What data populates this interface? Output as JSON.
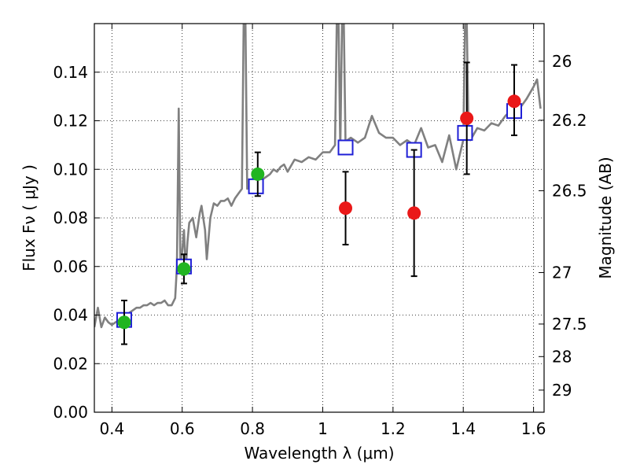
{
  "chart_data": {
    "type": "scatter",
    "title": "",
    "xlabel": "Wavelength  λ (μm)",
    "ylabel": "Flux  Fν  ( μJy )",
    "y2label": "Magnitude (AB)",
    "xlim": [
      0.35,
      1.63
    ],
    "ylim": [
      0.0,
      0.16
    ],
    "x_ticks": [
      0.4,
      0.6,
      0.8,
      1.0,
      1.2,
      1.4,
      1.6
    ],
    "x_tick_labels": [
      "0.4",
      "0.6",
      "0.8",
      "1",
      "1.2",
      "1.4",
      "1.6"
    ],
    "y_ticks": [
      0.0,
      0.02,
      0.04,
      0.06,
      0.08,
      0.1,
      0.12,
      0.14
    ],
    "y_tick_labels": [
      "0.00",
      "0.02",
      "0.04",
      "0.06",
      "0.08",
      "0.10",
      "0.12",
      "0.14"
    ],
    "y2_ticks": [
      {
        "label": "26",
        "flux": 0.1445
      },
      {
        "label": "26.2",
        "flux": 0.1202
      },
      {
        "label": "26.5",
        "flux": 0.0912
      },
      {
        "label": "27",
        "flux": 0.0575
      },
      {
        "label": "27.5",
        "flux": 0.0363
      },
      {
        "label": "28",
        "flux": 0.0229
      },
      {
        "label": "29",
        "flux": 0.0091
      }
    ],
    "grid": true,
    "series": [
      {
        "kind": "line",
        "color": "#808080",
        "x": [
          0.35,
          0.36,
          0.37,
          0.38,
          0.39,
          0.4,
          0.41,
          0.42,
          0.43,
          0.44,
          0.45,
          0.46,
          0.47,
          0.48,
          0.49,
          0.5,
          0.51,
          0.52,
          0.53,
          0.54,
          0.55,
          0.56,
          0.57,
          0.58,
          0.585,
          0.59,
          0.595,
          0.6,
          0.605,
          0.61,
          0.615,
          0.62,
          0.63,
          0.64,
          0.65,
          0.655,
          0.66,
          0.665,
          0.67,
          0.68,
          0.69,
          0.7,
          0.71,
          0.72,
          0.73,
          0.74,
          0.75,
          0.76,
          0.77,
          0.775,
          0.78,
          0.785,
          0.79,
          0.8,
          0.81,
          0.82,
          0.83,
          0.84,
          0.85,
          0.86,
          0.87,
          0.88,
          0.89,
          0.9,
          0.92,
          0.94,
          0.96,
          0.98,
          1.0,
          1.02,
          1.035,
          1.04,
          1.045,
          1.05,
          1.055,
          1.06,
          1.065,
          1.07,
          1.08,
          1.1,
          1.12,
          1.14,
          1.16,
          1.18,
          1.2,
          1.22,
          1.24,
          1.26,
          1.28,
          1.3,
          1.32,
          1.34,
          1.36,
          1.38,
          1.4,
          1.405,
          1.41,
          1.415,
          1.42,
          1.44,
          1.46,
          1.48,
          1.5,
          1.52,
          1.54,
          1.56,
          1.58,
          1.6,
          1.61,
          1.62
        ],
        "values": [
          0.035,
          0.043,
          0.035,
          0.039,
          0.037,
          0.036,
          0.037,
          0.038,
          0.039,
          0.04,
          0.041,
          0.042,
          0.043,
          0.043,
          0.044,
          0.044,
          0.045,
          0.044,
          0.045,
          0.045,
          0.046,
          0.044,
          0.044,
          0.047,
          0.06,
          0.125,
          0.06,
          0.066,
          0.075,
          0.058,
          0.07,
          0.078,
          0.08,
          0.072,
          0.082,
          0.085,
          0.08,
          0.075,
          0.063,
          0.08,
          0.086,
          0.085,
          0.087,
          0.087,
          0.088,
          0.085,
          0.088,
          0.09,
          0.092,
          0.16,
          0.16,
          0.092,
          0.093,
          0.095,
          0.094,
          0.095,
          0.096,
          0.097,
          0.098,
          0.1,
          0.099,
          0.101,
          0.102,
          0.099,
          0.104,
          0.103,
          0.105,
          0.104,
          0.107,
          0.107,
          0.11,
          0.16,
          0.16,
          0.108,
          0.16,
          0.16,
          0.11,
          0.112,
          0.113,
          0.111,
          0.113,
          0.122,
          0.115,
          0.113,
          0.113,
          0.11,
          0.112,
          0.11,
          0.117,
          0.109,
          0.11,
          0.103,
          0.114,
          0.1,
          0.112,
          0.16,
          0.16,
          0.115,
          0.112,
          0.117,
          0.116,
          0.119,
          0.118,
          0.122,
          0.125,
          0.125,
          0.129,
          0.134,
          0.137,
          0.125
        ]
      },
      {
        "kind": "squares",
        "color": "#1f1fd6",
        "x": [
          0.435,
          0.605,
          0.81,
          1.065,
          1.26,
          1.405,
          1.545
        ],
        "values": [
          0.038,
          0.06,
          0.093,
          0.109,
          0.108,
          0.115,
          0.124
        ]
      },
      {
        "kind": "points",
        "color": "#21b521",
        "x": [
          0.435,
          0.605,
          0.815
        ],
        "values": [
          0.037,
          0.059,
          0.098
        ],
        "err_low": [
          0.028,
          0.053,
          0.089
        ],
        "err_high": [
          0.046,
          0.065,
          0.107
        ]
      },
      {
        "kind": "points",
        "color": "#ea1818",
        "x": [
          1.065,
          1.26,
          1.41,
          1.545
        ],
        "values": [
          0.084,
          0.082,
          0.121,
          0.128
        ],
        "err_low": [
          0.069,
          0.056,
          0.098,
          0.114
        ],
        "err_high": [
          0.099,
          0.108,
          0.144,
          0.143
        ]
      }
    ]
  }
}
